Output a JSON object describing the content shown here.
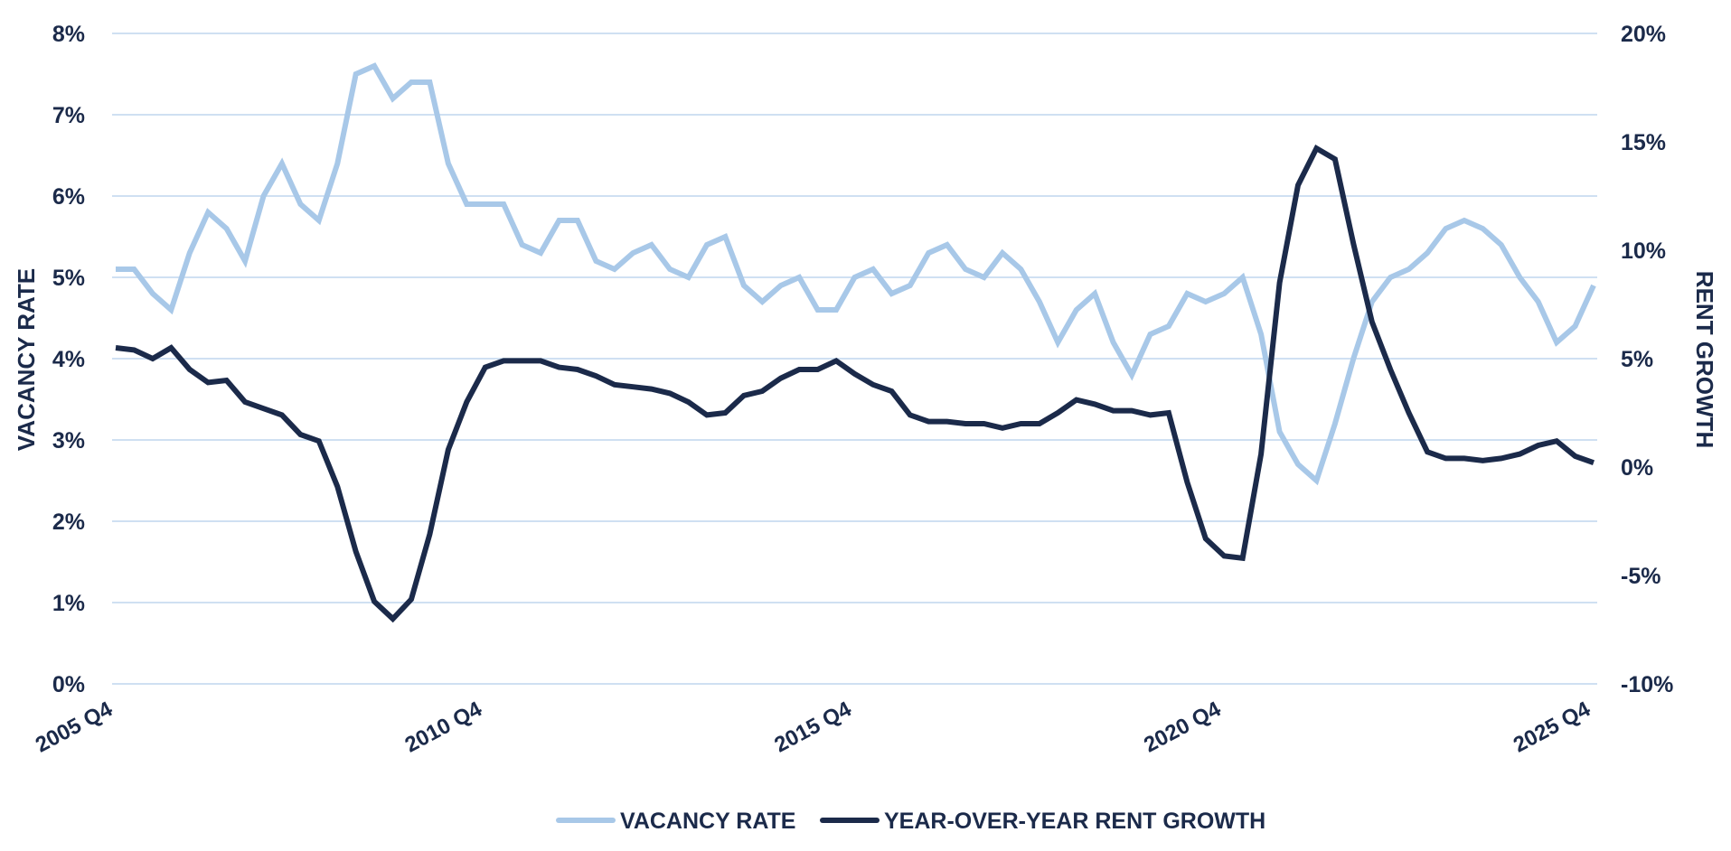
{
  "chart_data": {
    "type": "line",
    "left_axis": {
      "label": "VACANCY RATE",
      "ylim": [
        0,
        8
      ],
      "ticks": [
        {
          "value": 0,
          "label": "0%"
        },
        {
          "value": 1,
          "label": "1%"
        },
        {
          "value": 2,
          "label": "2%"
        },
        {
          "value": 3,
          "label": "3%"
        },
        {
          "value": 4,
          "label": "4%"
        },
        {
          "value": 5,
          "label": "5%"
        },
        {
          "value": 6,
          "label": "6%"
        },
        {
          "value": 7,
          "label": "7%"
        },
        {
          "value": 8,
          "label": "8%"
        }
      ]
    },
    "right_axis": {
      "label": "RENT GROWTH",
      "ylim": [
        -10,
        20
      ],
      "ticks": [
        {
          "value": -10,
          "label": "-10%"
        },
        {
          "value": -5,
          "label": "-5%"
        },
        {
          "value": 0,
          "label": "0%"
        },
        {
          "value": 5,
          "label": "5%"
        },
        {
          "value": 10,
          "label": "10%"
        },
        {
          "value": 15,
          "label": "15%"
        },
        {
          "value": 20,
          "label": "20%"
        }
      ]
    },
    "x_ticks": [
      {
        "index": 0,
        "label": "2005 Q4"
      },
      {
        "index": 20,
        "label": "2010 Q4"
      },
      {
        "index": 40,
        "label": "2015 Q4"
      },
      {
        "index": 60,
        "label": "2020 Q4"
      },
      {
        "index": 80,
        "label": "2025 Q4"
      }
    ],
    "grid": true,
    "legend_position": "bottom-center",
    "series": [
      {
        "name": "VACANCY RATE",
        "axis": "left",
        "color": "#a8c8e8",
        "values": [
          5.1,
          5.1,
          4.8,
          4.6,
          5.3,
          5.8,
          5.6,
          5.2,
          6.0,
          6.4,
          5.9,
          5.7,
          6.4,
          7.5,
          7.6,
          7.2,
          7.4,
          7.4,
          6.4,
          5.9,
          5.9,
          5.9,
          5.4,
          5.3,
          5.7,
          5.7,
          5.2,
          5.1,
          5.3,
          5.4,
          5.1,
          5.0,
          5.4,
          5.5,
          4.9,
          4.7,
          4.9,
          5.0,
          4.6,
          4.6,
          5.0,
          5.1,
          4.8,
          4.9,
          5.3,
          5.4,
          5.1,
          5.0,
          5.3,
          5.1,
          4.7,
          4.2,
          4.6,
          4.8,
          4.2,
          3.8,
          4.3,
          4.4,
          4.8,
          4.7,
          4.8,
          5.0,
          4.3,
          3.1,
          2.7,
          2.5,
          3.2,
          4.0,
          4.7,
          5.0,
          5.1,
          5.3,
          5.6,
          5.7,
          5.6,
          5.4,
          5.0,
          4.7,
          4.2,
          4.4,
          4.9
        ]
      },
      {
        "name": "YEAR-OVER-YEAR RENT GROWTH",
        "axis": "right",
        "color": "#1b2a4a",
        "values": [
          5.5,
          5.4,
          5.0,
          5.5,
          4.5,
          3.9,
          4.0,
          3.0,
          2.7,
          2.4,
          1.5,
          1.2,
          -0.9,
          -3.9,
          -6.2,
          -7.0,
          -6.1,
          -3.1,
          0.8,
          3.0,
          4.6,
          4.9,
          4.9,
          4.9,
          4.6,
          4.5,
          4.2,
          3.8,
          3.7,
          3.6,
          3.4,
          3.0,
          2.4,
          2.5,
          3.3,
          3.5,
          4.1,
          4.5,
          4.5,
          4.9,
          4.3,
          3.8,
          3.5,
          2.4,
          2.1,
          2.1,
          2.0,
          2.0,
          1.8,
          2.0,
          2.0,
          2.5,
          3.1,
          2.9,
          2.6,
          2.6,
          2.4,
          2.5,
          -0.7,
          -3.3,
          -4.1,
          -4.2,
          0.6,
          8.5,
          13.0,
          14.7,
          14.2,
          10.3,
          6.7,
          4.5,
          2.5,
          0.7,
          0.4,
          0.4,
          0.3,
          0.4,
          0.6,
          1.0,
          1.2,
          0.5,
          0.2
        ]
      }
    ]
  }
}
